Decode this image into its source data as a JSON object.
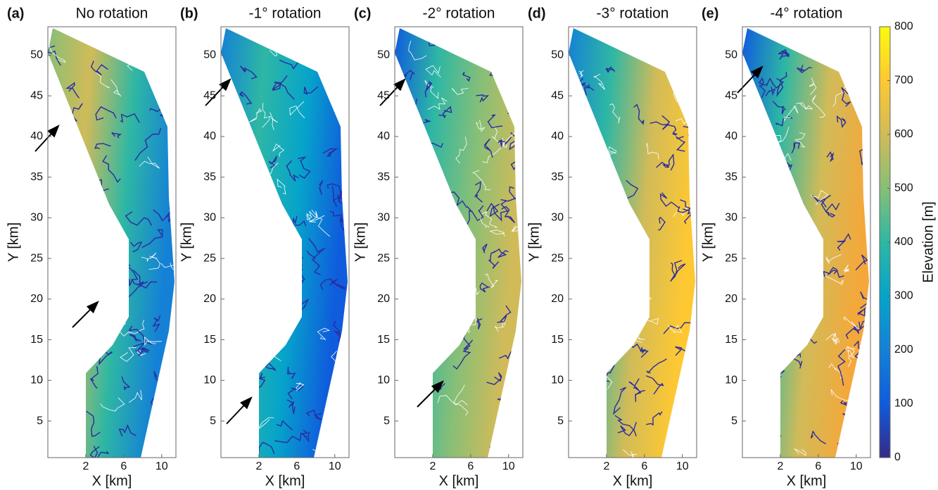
{
  "chart_data": [
    {
      "type": "map",
      "panel_label": "(a)",
      "title": "No rotation",
      "x_label": "X [km]",
      "y_label": "Y [km]",
      "xlim": [
        -2,
        11.5
      ],
      "ylim": [
        0.5,
        53.5
      ],
      "xticks": [
        2,
        6,
        10
      ],
      "yticks": [
        5,
        10,
        15,
        20,
        25,
        30,
        35,
        40,
        45,
        50
      ]
    },
    {
      "type": "map",
      "panel_label": "(b)",
      "title": "-1° rotation",
      "x_label": "X [km]",
      "y_label": "Y [km]",
      "xlim": [
        -2,
        11.5
      ],
      "ylim": [
        0.5,
        53.5
      ],
      "xticks": [
        2,
        6,
        10
      ],
      "yticks": [
        5,
        10,
        15,
        20,
        25,
        30,
        35,
        40,
        45,
        50
      ]
    },
    {
      "type": "map",
      "panel_label": "(c)",
      "title": "-2° rotation",
      "x_label": "X [km]",
      "y_label": "Y [km]",
      "xlim": [
        -2,
        11.5
      ],
      "ylim": [
        0.5,
        53.5
      ],
      "xticks": [
        2,
        6,
        10
      ],
      "yticks": [
        5,
        10,
        15,
        20,
        25,
        30,
        35,
        40,
        45,
        50
      ]
    },
    {
      "type": "map",
      "panel_label": "(d)",
      "title": "-3° rotation",
      "x_label": "X [km]",
      "y_label": "Y [km]",
      "xlim": [
        -2,
        11.5
      ],
      "ylim": [
        0.5,
        53.5
      ],
      "xticks": [
        2,
        6,
        10
      ],
      "yticks": [
        5,
        10,
        15,
        20,
        25,
        30,
        35,
        40,
        45,
        50
      ]
    },
    {
      "type": "map",
      "panel_label": "(e)",
      "title": "-4° rotation",
      "x_label": "X [km]",
      "y_label": "Y [km]",
      "xlim": [
        -2,
        11.5
      ],
      "ylim": [
        0.5,
        53.5
      ],
      "xticks": [
        2,
        6,
        10
      ],
      "yticks": [
        5,
        10,
        15,
        20,
        25,
        30,
        35,
        40,
        45,
        50
      ]
    },
    {
      "type": "colorbar",
      "label": "Elevation [m]",
      "ylim": [
        0,
        800
      ],
      "yticks": [
        0,
        100,
        200,
        300,
        400,
        500,
        600,
        700,
        800
      ],
      "colors": [
        "#352a87",
        "#0f5cdd",
        "#1481d6",
        "#06a4ca",
        "#2eb7a4",
        "#87bf77",
        "#d1bb59",
        "#fec832",
        "#f9fb0e"
      ]
    }
  ]
}
